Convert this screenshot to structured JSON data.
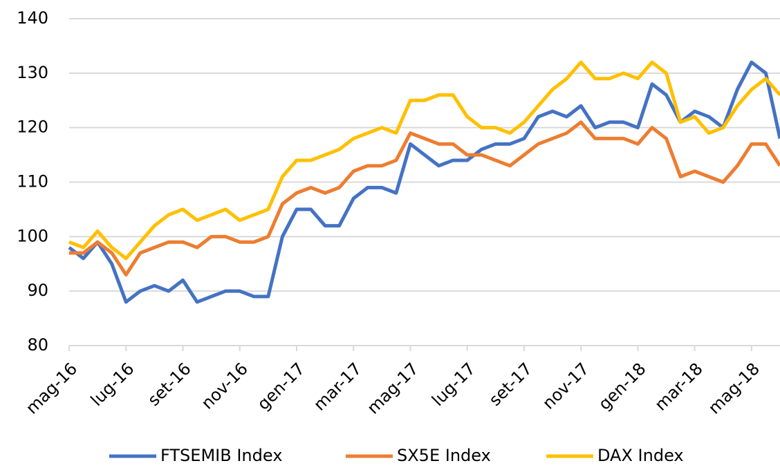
{
  "chart_data": {
    "type": "line",
    "categories": [
      "mag-16",
      null,
      null,
      null,
      "lug-16",
      null,
      null,
      null,
      "set-16",
      null,
      null,
      null,
      "nov-16",
      null,
      null,
      null,
      "gen-17",
      null,
      null,
      null,
      "mar-17",
      null,
      null,
      null,
      "mag-17",
      null,
      null,
      null,
      "lug-17",
      null,
      null,
      null,
      "set-17",
      null,
      null,
      null,
      "nov-17",
      null,
      null,
      null,
      "gen-18",
      null,
      null,
      null,
      "mar-18",
      null,
      null,
      null,
      "mag-18",
      null,
      null
    ],
    "series": [
      {
        "name": "FTSEMIB Index",
        "color": "#4472c4",
        "values": [
          98,
          96,
          99,
          95,
          88,
          90,
          91,
          90,
          92,
          88,
          89,
          90,
          90,
          89,
          89,
          100,
          105,
          105,
          102,
          102,
          107,
          109,
          109,
          108,
          117,
          115,
          113,
          114,
          114,
          116,
          117,
          117,
          118,
          122,
          123,
          122,
          124,
          120,
          121,
          121,
          120,
          128,
          126,
          121,
          123,
          122,
          120,
          127,
          132,
          130,
          118
        ]
      },
      {
        "name": "SX5E Index",
        "color": "#ed7d31",
        "values": [
          97,
          97,
          99,
          97,
          93,
          97,
          98,
          99,
          99,
          98,
          100,
          100,
          99,
          99,
          100,
          106,
          108,
          109,
          108,
          109,
          112,
          113,
          113,
          114,
          119,
          118,
          117,
          117,
          115,
          115,
          114,
          113,
          115,
          117,
          118,
          119,
          121,
          118,
          118,
          118,
          117,
          120,
          118,
          111,
          112,
          111,
          110,
          113,
          117,
          117,
          113
        ]
      },
      {
        "name": "DAX Index",
        "color": "#ffc000",
        "values": [
          99,
          98,
          101,
          98,
          96,
          99,
          102,
          104,
          105,
          103,
          104,
          105,
          103,
          104,
          105,
          111,
          114,
          114,
          115,
          116,
          118,
          119,
          120,
          119,
          125,
          125,
          126,
          126,
          122,
          120,
          120,
          119,
          121,
          124,
          127,
          129,
          132,
          129,
          129,
          130,
          129,
          132,
          130,
          121,
          122,
          119,
          120,
          124,
          127,
          129,
          126
        ]
      }
    ],
    "ylim": [
      80,
      140
    ],
    "yticks": [
      80,
      90,
      100,
      110,
      120,
      130,
      140
    ],
    "grid": true,
    "legend": "bottom"
  }
}
